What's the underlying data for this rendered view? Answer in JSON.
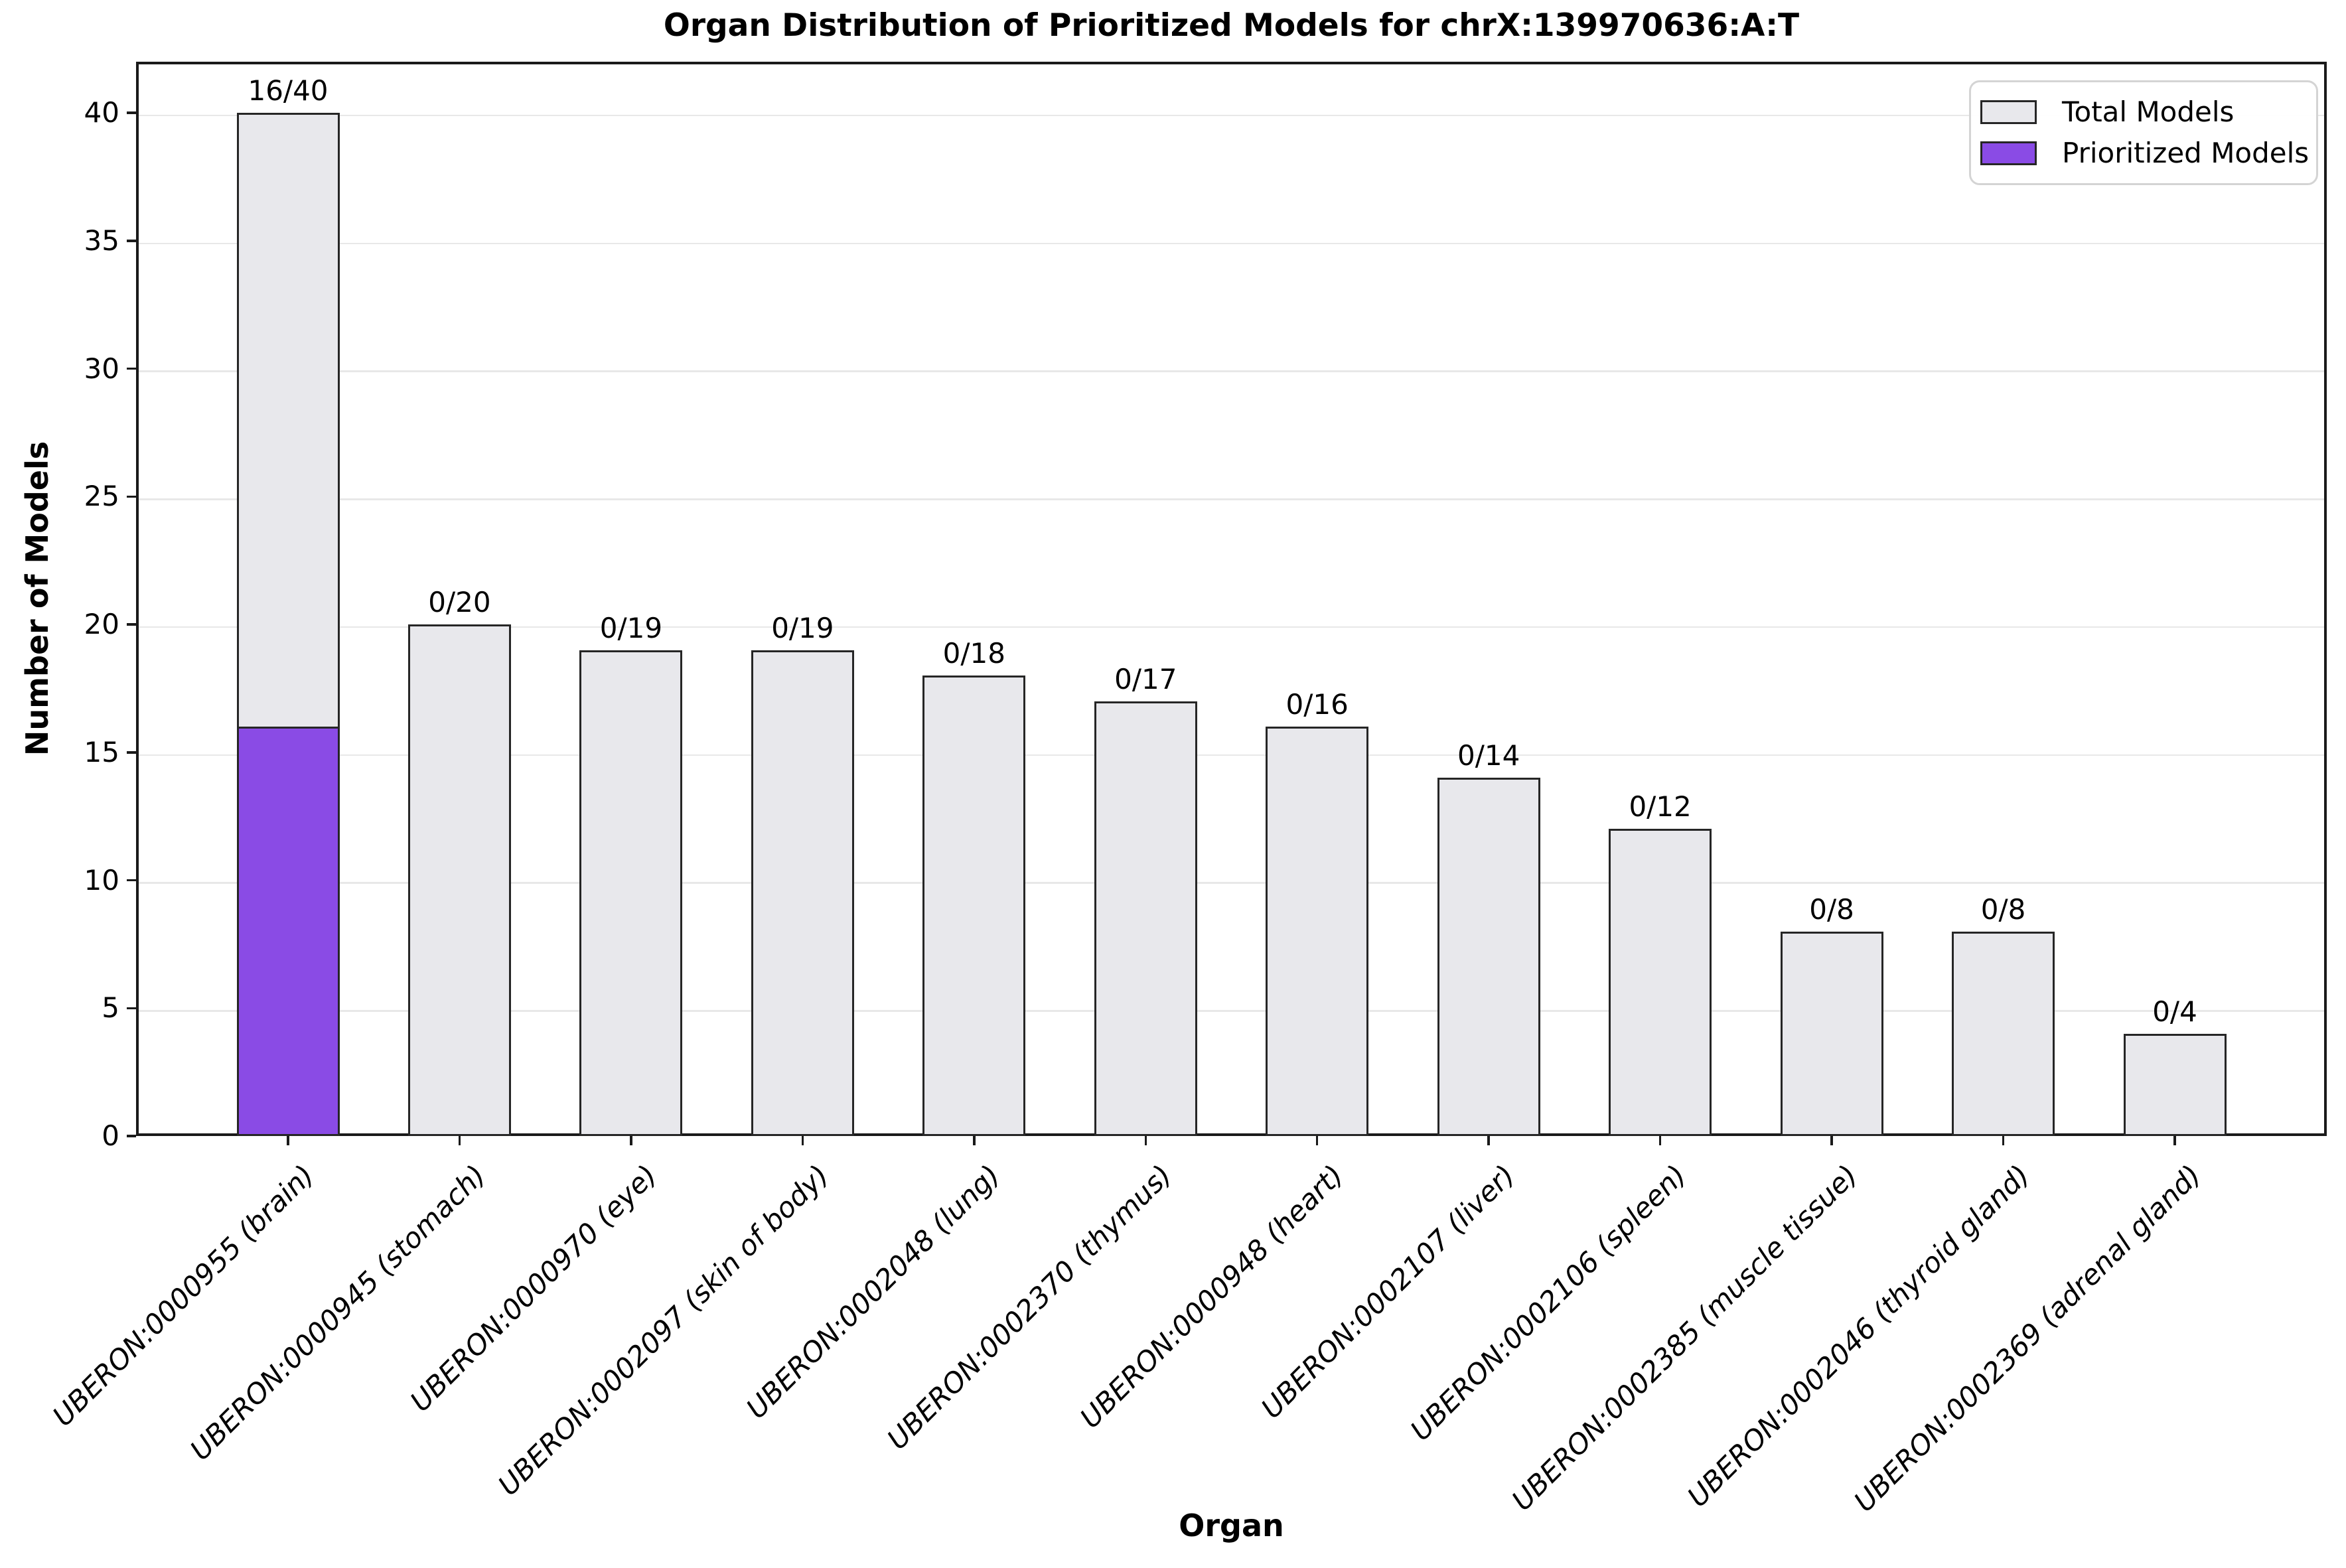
{
  "chart_data": {
    "type": "bar",
    "title": "Organ Distribution of Prioritized Models for chrX:139970636:A:T",
    "xlabel": "Organ",
    "ylabel": "Number of Models",
    "ylim": [
      0,
      42
    ],
    "yticks": [
      0,
      5,
      10,
      15,
      20,
      25,
      30,
      35,
      40
    ],
    "grid": "horizontal-light",
    "legend_position": "upper right",
    "categories": [
      "UBERON:0000955 (brain)",
      "UBERON:0000945 (stomach)",
      "UBERON:0000970 (eye)",
      "UBERON:0002097 (skin of body)",
      "UBERON:0002048 (lung)",
      "UBERON:0002370 (thymus)",
      "UBERON:0000948 (heart)",
      "UBERON:0002107 (liver)",
      "UBERON:0002106 (spleen)",
      "UBERON:0002385 (muscle tissue)",
      "UBERON:0002046 (thyroid gland)",
      "UBERON:0002369 (adrenal gland)"
    ],
    "series": [
      {
        "name": "Total Models",
        "values": [
          40,
          20,
          19,
          19,
          18,
          17,
          16,
          14,
          12,
          8,
          8,
          4
        ],
        "fill": "#e8e8ec"
      },
      {
        "name": "Prioritized Models",
        "values": [
          16,
          0,
          0,
          0,
          0,
          0,
          0,
          0,
          0,
          0,
          0,
          0
        ],
        "fill": "#8a4be5"
      }
    ],
    "bar_labels": [
      "16/40",
      "0/20",
      "0/19",
      "0/19",
      "0/18",
      "0/17",
      "0/16",
      "0/14",
      "0/12",
      "0/8",
      "0/8",
      "0/4"
    ],
    "edge_color": "#262626",
    "grid_color": "#e8e8e8",
    "spine_color": "#1a1a1a"
  }
}
